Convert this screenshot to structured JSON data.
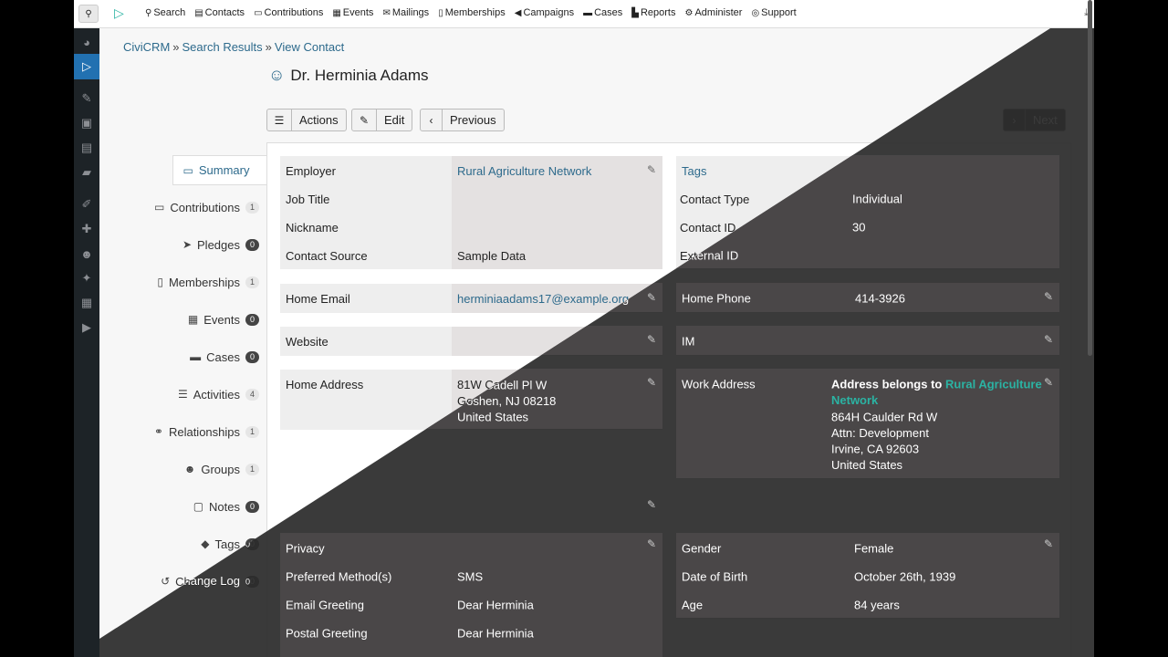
{
  "menu": [
    {
      "icon": "search-icon",
      "glyph": "⚲",
      "label": "Search"
    },
    {
      "icon": "contacts-icon",
      "glyph": "▤",
      "label": "Contacts"
    },
    {
      "icon": "credit-card-icon",
      "glyph": "▭",
      "label": "Contributions"
    },
    {
      "icon": "calendar-icon",
      "glyph": "▦",
      "label": "Events"
    },
    {
      "icon": "envelope-icon",
      "glyph": "✉",
      "label": "Mailings"
    },
    {
      "icon": "id-badge-icon",
      "glyph": "▯",
      "label": "Memberships"
    },
    {
      "icon": "bullhorn-icon",
      "glyph": "◀",
      "label": "Campaigns"
    },
    {
      "icon": "folder-icon",
      "glyph": "▬",
      "label": "Cases"
    },
    {
      "icon": "chart-icon",
      "glyph": "▙",
      "label": "Reports"
    },
    {
      "icon": "cogs-icon",
      "glyph": "⚙",
      "label": "Administer"
    },
    {
      "icon": "lifebuoy-icon",
      "glyph": "◎",
      "label": "Support"
    }
  ],
  "breadcrumb": {
    "home": "CiviCRM",
    "sep": "»",
    "search": "Search Results",
    "current": "View Contact"
  },
  "contact": {
    "name": "Dr. Herminia Adams"
  },
  "buttons": {
    "actions": "Actions",
    "edit": "Edit",
    "previous": "Previous",
    "next": "Next"
  },
  "tabs": [
    {
      "label": "Summary",
      "icon": "id-card-icon",
      "glyph": "▭",
      "count": ""
    },
    {
      "label": "Contributions",
      "icon": "credit-card-icon",
      "glyph": "▭",
      "count": "1"
    },
    {
      "label": "Pledges",
      "icon": "paper-plane-icon",
      "glyph": "➤",
      "count": "0"
    },
    {
      "label": "Memberships",
      "icon": "id-badge-icon",
      "glyph": "▯",
      "count": "1"
    },
    {
      "label": "Events",
      "icon": "calendar-icon",
      "glyph": "▦",
      "count": "0"
    },
    {
      "label": "Cases",
      "icon": "folder-open-icon",
      "glyph": "▬",
      "count": "0"
    },
    {
      "label": "Activities",
      "icon": "tasks-icon",
      "glyph": "☰",
      "count": "4"
    },
    {
      "label": "Relationships",
      "icon": "handshake-icon",
      "glyph": "⚭",
      "count": "1"
    },
    {
      "label": "Groups",
      "icon": "users-icon",
      "glyph": "☻",
      "count": "1"
    },
    {
      "label": "Notes",
      "icon": "sticky-note-icon",
      "glyph": "▢",
      "count": "0"
    },
    {
      "label": "Tags",
      "icon": "tags-icon",
      "glyph": "◆",
      "count": "0"
    },
    {
      "label": "Change Log",
      "icon": "history-icon",
      "glyph": "↺",
      "count": "0"
    }
  ],
  "basic": [
    {
      "label": "Employer",
      "value": "Rural Agriculture Network",
      "link": true
    },
    {
      "label": "Job Title",
      "value": ""
    },
    {
      "label": "Nickname",
      "value": ""
    },
    {
      "label": "Contact Source",
      "value": "Sample Data"
    }
  ],
  "tagsblock": {
    "title": "Tags",
    "rows": [
      {
        "label": "Contact Type",
        "value": "Individual"
      },
      {
        "label": "Contact ID",
        "value": "30"
      },
      {
        "label": "External ID",
        "value": ""
      }
    ]
  },
  "email": {
    "label": "Home Email",
    "value": "herminiaadams17@example.org"
  },
  "phone": {
    "label": "Home Phone",
    "value": "414-3926"
  },
  "website": {
    "label": "Website",
    "value": ""
  },
  "im": {
    "label": "IM",
    "value": ""
  },
  "home_address": {
    "label": "Home Address",
    "lines": [
      "81W Cadell Pl W",
      "Goshen, NJ 08218",
      "United States"
    ]
  },
  "work_address": {
    "label": "Work Address",
    "belongs_prefix": "Address belongs to",
    "belongs_link_1": "Rural Agriculture",
    "belongs_link_2": "Network",
    "lines": [
      "864H Caulder Rd W",
      "Attn: Development",
      "Irvine, CA 92603",
      "United States"
    ]
  },
  "communication": [
    {
      "label": "Privacy",
      "value": ""
    },
    {
      "label": "Preferred Method(s)",
      "value": "SMS"
    },
    {
      "label": "Email Greeting",
      "value": "Dear Herminia"
    },
    {
      "label": "Postal Greeting",
      "value": "Dear Herminia"
    }
  ],
  "demographics": [
    {
      "label": "Gender",
      "value": "Female"
    },
    {
      "label": "Date of Birth",
      "value": "October 26th, 1939"
    },
    {
      "label": "Age",
      "value": "84 years"
    }
  ],
  "colors": {
    "link": "#2d6a8c",
    "dark_bg": "#2b2b2b",
    "dark_block": "#4a4748",
    "accent_wp": "#2271b1",
    "teal_link": "#2bb3a3"
  }
}
